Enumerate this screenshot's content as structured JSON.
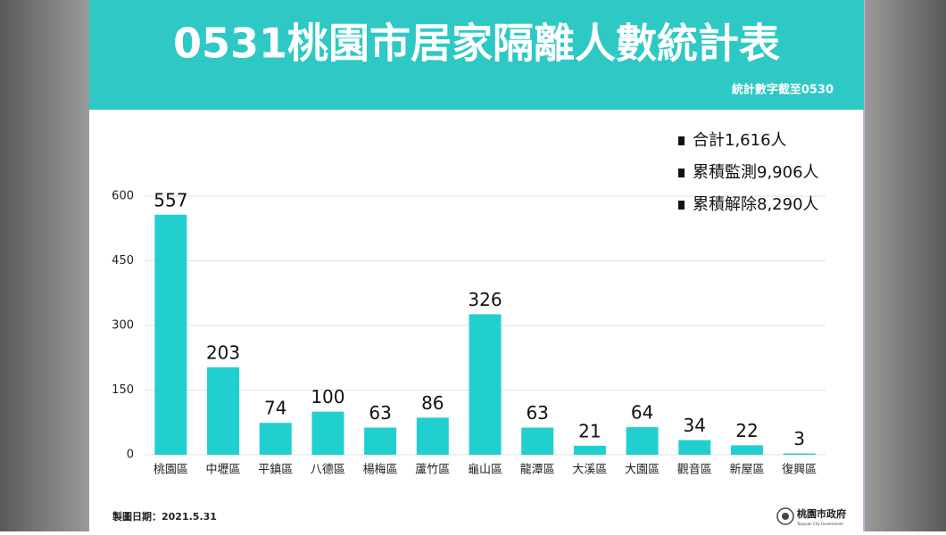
{
  "chart_data": {
    "type": "bar",
    "title": "0531桃園市居家隔離人數統計表",
    "subtitle": "統計數字截至0530",
    "categories": [
      "桃園區",
      "中壢區",
      "平鎮區",
      "八德區",
      "楊梅區",
      "蘆竹區",
      "龜山區",
      "龍潭區",
      "大溪區",
      "大園區",
      "觀音區",
      "新屋區",
      "復興區"
    ],
    "values": [
      557,
      203,
      74,
      100,
      63,
      86,
      326,
      63,
      21,
      64,
      34,
      22,
      3
    ],
    "color": "#22cfcf",
    "ylim": [
      0,
      600
    ],
    "yticks": [
      0,
      150,
      300,
      450,
      600
    ],
    "grid": true,
    "annotations": [
      "合計1,616人",
      "累積監測9,906人",
      "累積解除8,290人"
    ]
  },
  "footer": {
    "date_note": "製圖日期：2021.5.31",
    "logo_text": "桃園市政府",
    "logo_subtext": "Taoyuan City Government"
  }
}
